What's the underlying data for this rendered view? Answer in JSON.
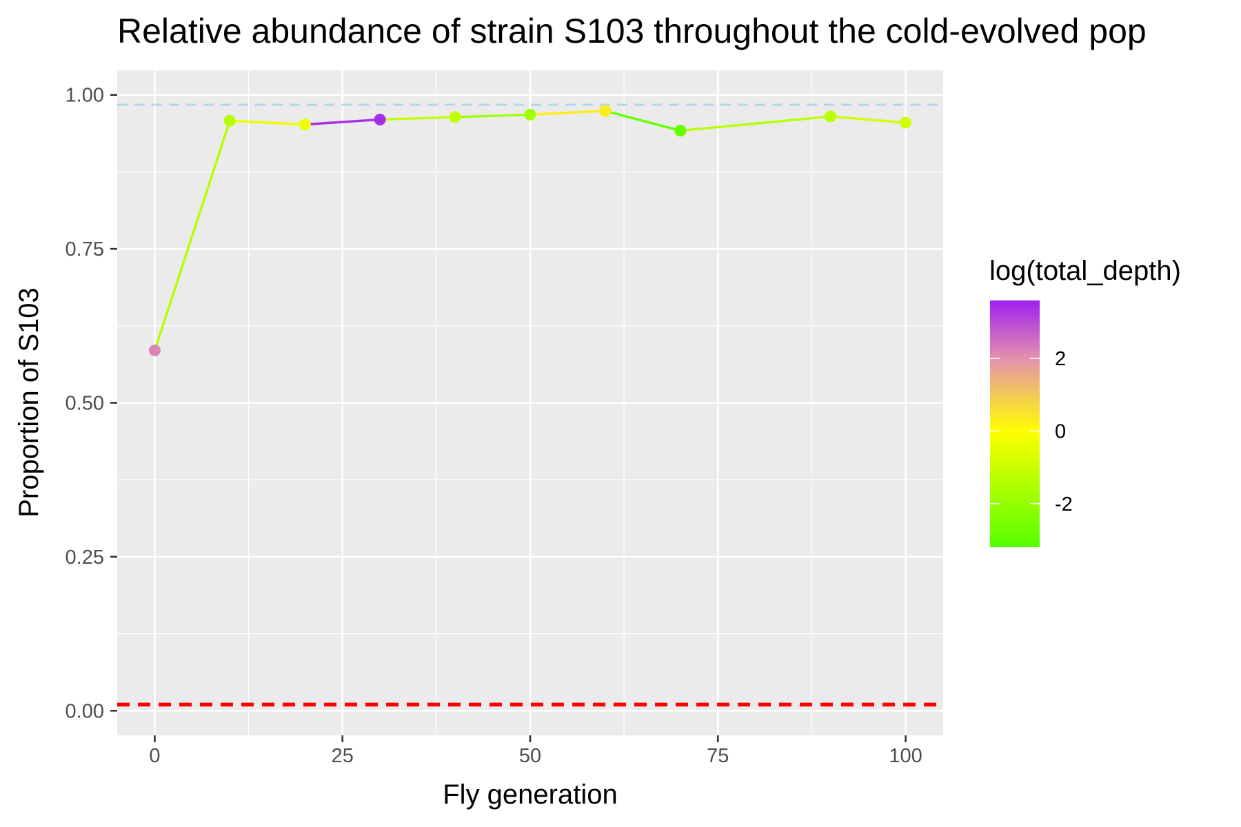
{
  "chart_data": {
    "type": "line",
    "title": "Relative abundance of strain S103 throughout the cold-evolved pop",
    "xlabel": "Fly generation",
    "ylabel": "Proportion of S103",
    "xlim": [
      -5,
      105
    ],
    "ylim": [
      -0.04,
      1.04
    ],
    "x_ticks": [
      0,
      25,
      50,
      75,
      100
    ],
    "x_tick_labels": [
      "0",
      "25",
      "50",
      "75",
      "100"
    ],
    "y_ticks": [
      0,
      0.25,
      0.5,
      0.75,
      1
    ],
    "y_tick_labels": [
      "0.00",
      "0.25",
      "0.50",
      "0.75",
      "1.00"
    ],
    "grid": true,
    "series": [
      {
        "x": [
          0,
          10,
          20,
          30,
          40,
          50,
          60,
          70,
          90,
          100
        ],
        "y": [
          0.585,
          0.958,
          0.952,
          0.96,
          0.964,
          0.968,
          0.974,
          0.942,
          0.965,
          0.955
        ],
        "color_value": [
          2.2,
          -1.4,
          -0.3,
          3.4,
          -1.2,
          -1.8,
          0.3,
          -2.9,
          -1.3,
          -0.9
        ]
      }
    ],
    "reference_lines": [
      {
        "y": 0.984,
        "color": "#add8e6",
        "style": "dashed"
      },
      {
        "y": 0.01,
        "color": "#ff0000",
        "style": "dashed"
      }
    ],
    "legend": {
      "title": "log(total_depth)",
      "position": "right",
      "type": "colorbar",
      "range": [
        -3.2,
        3.6
      ],
      "ticks": [
        2,
        0,
        -2
      ],
      "tick_labels": [
        "2",
        "0",
        "-2"
      ],
      "colors": {
        "low": "#55ff00",
        "mid": "#ffff00",
        "midhigh": "#e593ac",
        "high": "#a020f0"
      }
    },
    "colors": {
      "panel": "#ebebeb",
      "grid": "#ffffff"
    }
  }
}
